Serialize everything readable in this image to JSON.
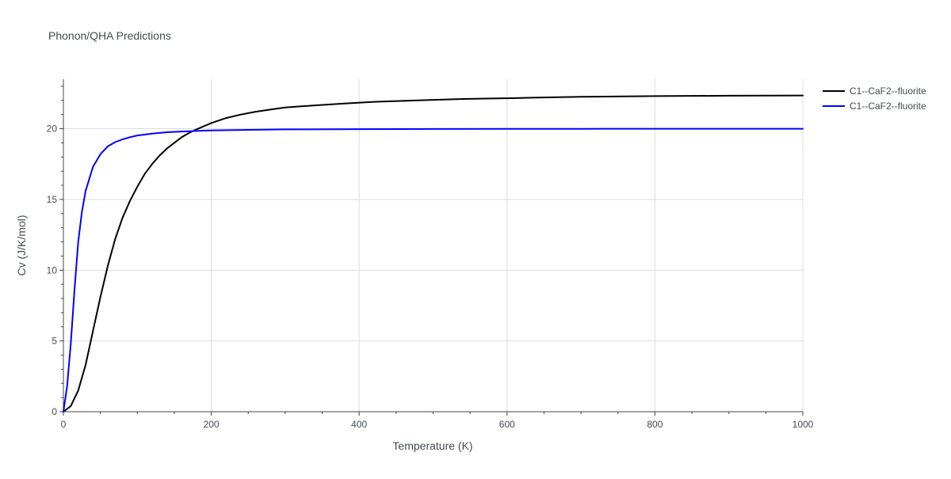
{
  "chart_data": {
    "type": "line",
    "title": "Phonon/QHA Predictions",
    "xlabel": "Temperature (K)",
    "ylabel": "Cv (J/K/mol)",
    "xlim": [
      0,
      1000
    ],
    "ylim": [
      0,
      23.5
    ],
    "x_ticks": [
      0,
      200,
      400,
      600,
      800,
      1000
    ],
    "y_ticks": [
      0,
      5,
      10,
      15,
      20
    ],
    "grid": true,
    "legend_position": "top-right (outside plot)",
    "series": [
      {
        "name": "C1--CaF2--fluorite",
        "color": "#000000",
        "x": [
          0,
          10,
          20,
          30,
          40,
          50,
          60,
          70,
          80,
          90,
          100,
          110,
          120,
          130,
          140,
          150,
          160,
          170,
          180,
          200,
          220,
          240,
          260,
          280,
          300,
          340,
          380,
          420,
          480,
          540,
          600,
          640,
          700,
          800,
          900,
          1000
        ],
        "y": [
          0,
          0.4,
          1.5,
          3.3,
          5.7,
          8.1,
          10.3,
          12.2,
          13.7,
          14.9,
          15.9,
          16.8,
          17.5,
          18.1,
          18.6,
          19.0,
          19.4,
          19.7,
          19.95,
          20.4,
          20.75,
          21.0,
          21.2,
          21.35,
          21.5,
          21.65,
          21.78,
          21.9,
          22.0,
          22.1,
          22.15,
          22.2,
          22.25,
          22.3,
          22.33,
          22.35
        ]
      },
      {
        "name": "C1--CaF2--fluorite",
        "color": "#0000ff",
        "x": [
          0,
          5,
          10,
          15,
          20,
          25,
          30,
          40,
          50,
          60,
          70,
          80,
          90,
          100,
          120,
          140,
          160,
          200,
          250,
          300,
          400,
          500,
          600,
          700,
          800,
          900,
          1000
        ],
        "y": [
          0,
          1.8,
          4.8,
          8.6,
          12.0,
          14.1,
          15.6,
          17.3,
          18.2,
          18.75,
          19.05,
          19.25,
          19.4,
          19.52,
          19.65,
          19.75,
          19.8,
          19.88,
          19.92,
          19.95,
          19.97,
          19.98,
          19.99,
          19.99,
          20.0,
          20.0,
          20.0
        ]
      }
    ]
  }
}
